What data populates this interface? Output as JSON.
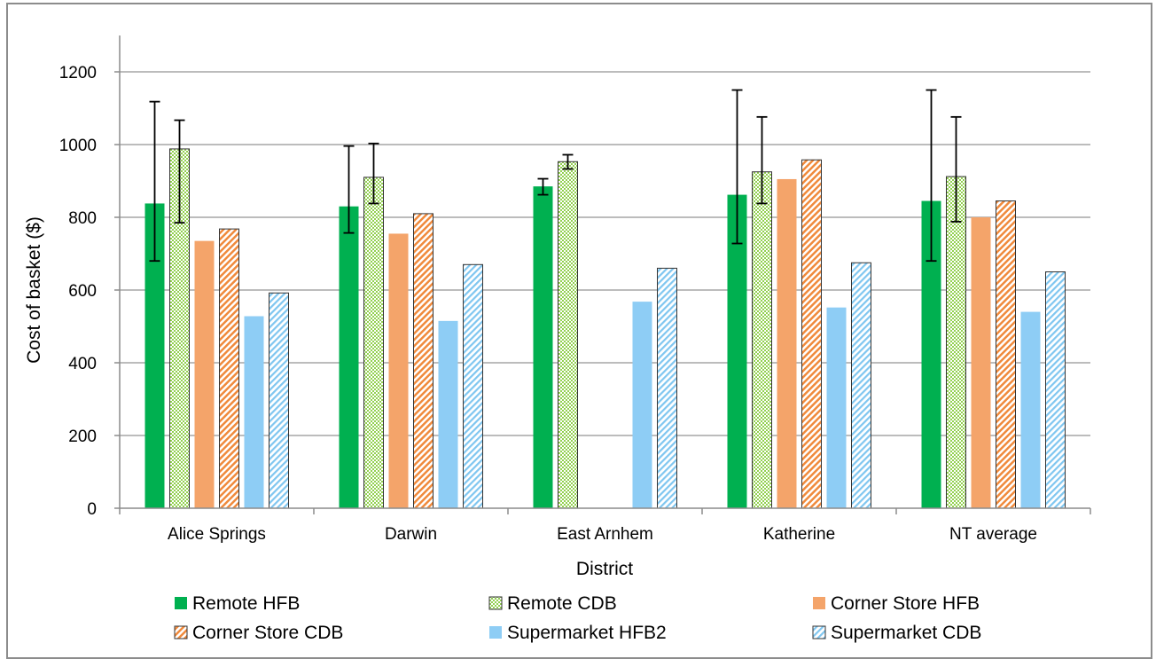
{
  "chart_data": {
    "type": "bar",
    "title": "",
    "xlabel": "District",
    "ylabel": "Cost of basket ($)",
    "ylim": [
      0,
      1300
    ],
    "yticks": [
      0,
      200,
      400,
      600,
      800,
      1000,
      1200
    ],
    "grid": true,
    "legend_position": "bottom",
    "categories": [
      "Alice Springs",
      "Darwin",
      "East Arnhem",
      "Katherine",
      "NT average"
    ],
    "series": [
      {
        "name": "Remote HFB",
        "color": "#00b050",
        "pattern": "solid",
        "values": [
          838,
          830,
          885,
          862,
          845
        ],
        "error_low": [
          680,
          757,
          862,
          728,
          680
        ],
        "error_high": [
          1118,
          996,
          906,
          1150,
          1150
        ]
      },
      {
        "name": "Remote CDB",
        "color": "#92d050",
        "pattern": "checker",
        "values": [
          988,
          910,
          953,
          925,
          912
        ],
        "error_low": [
          785,
          838,
          933,
          838,
          788
        ],
        "error_high": [
          1067,
          1003,
          972,
          1076,
          1076
        ]
      },
      {
        "name": "Corner Store HFB",
        "color": "#f4a46a",
        "pattern": "solid",
        "values": [
          735,
          755,
          null,
          905,
          800
        ]
      },
      {
        "name": "Corner Store CDB",
        "color": "#f08a3c",
        "pattern": "diagonal",
        "values": [
          768,
          810,
          null,
          958,
          845
        ]
      },
      {
        "name": "Supermarket HFB2",
        "color": "#8ecdf5",
        "pattern": "solid",
        "values": [
          528,
          515,
          568,
          552,
          540
        ]
      },
      {
        "name": "Supermarket CDB",
        "color": "#7fc6f0",
        "pattern": "diagonal",
        "values": [
          592,
          670,
          660,
          675,
          650
        ]
      }
    ]
  }
}
